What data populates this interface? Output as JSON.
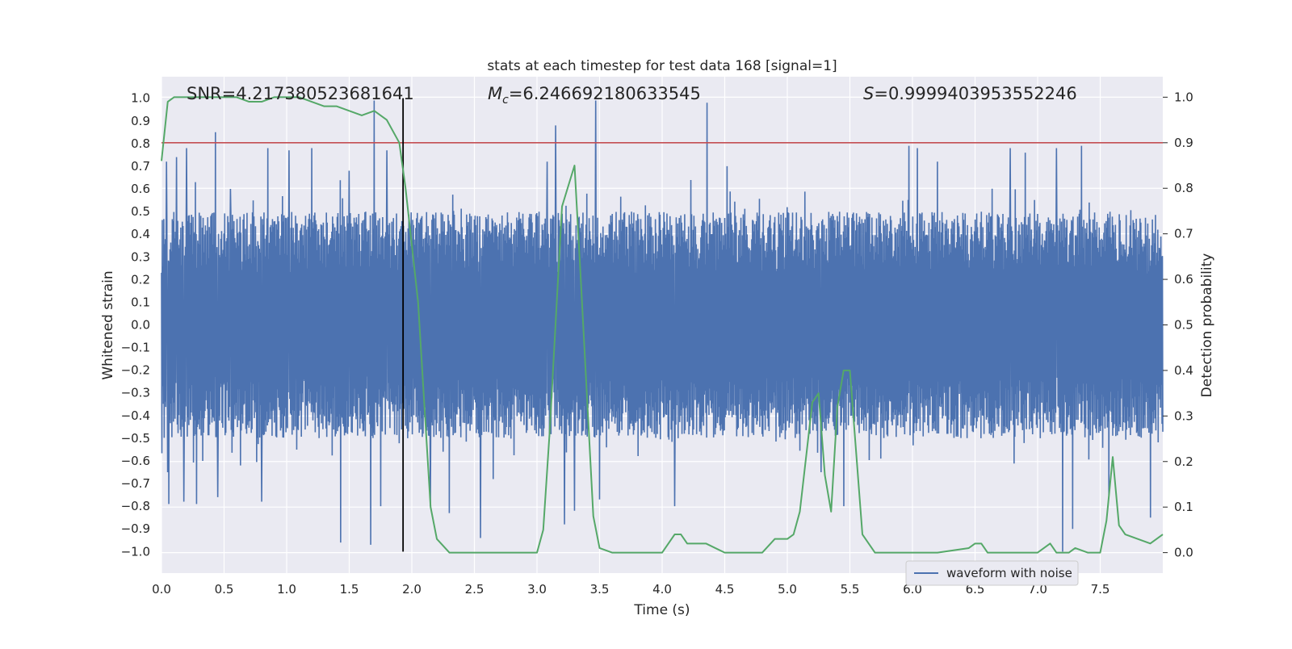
{
  "chart_data": {
    "type": "line",
    "title": "stats at each timestep for test data 168 [signal=1]",
    "xlabel": "Time (s)",
    "ylabel": "Whitened strain",
    "y2label": "Detection probability",
    "xlim": [
      0.0,
      8.0
    ],
    "ylim": [
      -1.095,
      1.095
    ],
    "y2lim": [
      -0.045,
      1.045
    ],
    "grid": true,
    "legend_position": "lower-right",
    "x_ticks": [
      "0.0",
      "0.5",
      "1.0",
      "1.5",
      "2.0",
      "2.5",
      "3.0",
      "3.5",
      "4.0",
      "4.5",
      "5.0",
      "5.5",
      "6.0",
      "6.5",
      "7.0",
      "7.5"
    ],
    "y_ticks": [
      "1.0",
      "0.9",
      "0.8",
      "0.7",
      "0.6",
      "0.5",
      "0.4",
      "0.3",
      "0.2",
      "0.1",
      "0.0",
      "−0.1",
      "−0.2",
      "−0.3",
      "−0.4",
      "−0.5",
      "−0.6",
      "−0.7",
      "−0.8",
      "−0.9",
      "−1.0"
    ],
    "y2_ticks": [
      "1.0",
      "0.9",
      "0.8",
      "0.7",
      "0.6",
      "0.5",
      "0.4",
      "0.3",
      "0.2",
      "0.1",
      "0.0"
    ],
    "annotations": {
      "snr_text": "SNR=4.217380523681641",
      "mc_symbol": "M",
      "mc_subscript": "c",
      "mc_value": "=6.246692180633545",
      "s_symbol": "S",
      "s_value": "=0.9999403953552246"
    },
    "threshold": {
      "value": 0.9,
      "axis": "right",
      "color": "#c44e52"
    },
    "marker_line": {
      "x": 1.93,
      "y_from": -1.0,
      "y_to": 1.0,
      "color": "#000000"
    },
    "waveform": {
      "name": "waveform with noise",
      "color": "#4c72b0",
      "typical_envelope": 0.5,
      "spikes": [
        {
          "t": 0.04,
          "v": 0.72
        },
        {
          "t": 0.05,
          "v": -0.65
        },
        {
          "t": 0.06,
          "v": -0.79
        },
        {
          "t": 0.12,
          "v": 0.74
        },
        {
          "t": 0.18,
          "v": -0.78
        },
        {
          "t": 0.2,
          "v": 0.78
        },
        {
          "t": 0.27,
          "v": 0.63
        },
        {
          "t": 0.28,
          "v": -0.79
        },
        {
          "t": 0.33,
          "v": -0.6
        },
        {
          "t": 0.43,
          "v": 0.85
        },
        {
          "t": 0.45,
          "v": -0.76
        },
        {
          "t": 0.55,
          "v": 0.6
        },
        {
          "t": 0.63,
          "v": -0.62
        },
        {
          "t": 0.8,
          "v": -0.78
        },
        {
          "t": 0.85,
          "v": 0.78
        },
        {
          "t": 1.02,
          "v": 0.77
        },
        {
          "t": 1.08,
          "v": -0.55
        },
        {
          "t": 1.2,
          "v": 0.78
        },
        {
          "t": 1.43,
          "v": -0.96
        },
        {
          "t": 1.5,
          "v": 0.68
        },
        {
          "t": 1.67,
          "v": -0.97
        },
        {
          "t": 1.7,
          "v": 0.99
        },
        {
          "t": 1.75,
          "v": -0.8
        },
        {
          "t": 1.8,
          "v": 0.77
        },
        {
          "t": 2.15,
          "v": -0.8
        },
        {
          "t": 2.3,
          "v": -0.83
        },
        {
          "t": 2.55,
          "v": -0.94
        },
        {
          "t": 2.65,
          "v": -0.68
        },
        {
          "t": 3.08,
          "v": 0.72
        },
        {
          "t": 3.15,
          "v": 0.88
        },
        {
          "t": 3.22,
          "v": -0.88
        },
        {
          "t": 3.3,
          "v": -0.82
        },
        {
          "t": 3.47,
          "v": 0.99
        },
        {
          "t": 3.5,
          "v": -0.77
        },
        {
          "t": 4.1,
          "v": -0.8
        },
        {
          "t": 4.36,
          "v": 0.98
        },
        {
          "t": 4.52,
          "v": 0.7
        },
        {
          "t": 5.27,
          "v": -0.65
        },
        {
          "t": 5.45,
          "v": -0.8
        },
        {
          "t": 5.97,
          "v": 0.79
        },
        {
          "t": 6.04,
          "v": 0.78
        },
        {
          "t": 6.2,
          "v": 0.72
        },
        {
          "t": 6.78,
          "v": 0.78
        },
        {
          "t": 6.9,
          "v": 0.76
        },
        {
          "t": 7.15,
          "v": 0.78
        },
        {
          "t": 7.2,
          "v": -1.0
        },
        {
          "t": 7.28,
          "v": -0.9
        },
        {
          "t": 7.35,
          "v": 0.79
        },
        {
          "t": 7.57,
          "v": -0.75
        },
        {
          "t": 7.9,
          "v": -0.85
        }
      ]
    },
    "probability": {
      "name": "Detection probability",
      "color": "#55a868",
      "x": [
        0.0,
        0.05,
        0.1,
        0.2,
        0.3,
        0.4,
        0.5,
        0.6,
        0.7,
        0.8,
        0.9,
        1.0,
        1.1,
        1.2,
        1.3,
        1.4,
        1.5,
        1.6,
        1.7,
        1.8,
        1.9,
        1.95,
        2.05,
        2.15,
        2.2,
        2.3,
        2.4,
        2.6,
        2.8,
        2.9,
        3.0,
        3.05,
        3.1,
        3.2,
        3.3,
        3.35,
        3.45,
        3.5,
        3.6,
        3.8,
        3.95,
        4.0,
        4.1,
        4.15,
        4.2,
        4.3,
        4.35,
        4.5,
        4.75,
        4.8,
        4.9,
        4.95,
        5.0,
        5.05,
        5.1,
        5.2,
        5.25,
        5.3,
        5.35,
        5.4,
        5.45,
        5.5,
        5.6,
        5.7,
        5.8,
        6.2,
        6.45,
        6.5,
        6.55,
        6.6,
        6.8,
        7.0,
        7.05,
        7.1,
        7.15,
        7.2,
        7.25,
        7.3,
        7.4,
        7.5,
        7.55,
        7.6,
        7.65,
        7.7,
        7.8,
        7.9,
        8.0
      ],
      "y": [
        0.86,
        0.99,
        1.0,
        1.0,
        1.0,
        1.0,
        1.0,
        1.0,
        0.99,
        0.99,
        1.0,
        1.0,
        1.0,
        0.99,
        0.98,
        0.98,
        0.97,
        0.96,
        0.97,
        0.95,
        0.9,
        0.8,
        0.55,
        0.1,
        0.03,
        0.0,
        0.0,
        0.0,
        0.0,
        0.0,
        0.0,
        0.05,
        0.26,
        0.76,
        0.85,
        0.6,
        0.08,
        0.01,
        0.0,
        0.0,
        0.0,
        0.0,
        0.04,
        0.04,
        0.02,
        0.02,
        0.02,
        0.0,
        0.0,
        0.0,
        0.03,
        0.03,
        0.03,
        0.04,
        0.09,
        0.33,
        0.35,
        0.17,
        0.09,
        0.32,
        0.4,
        0.4,
        0.04,
        0.0,
        0.0,
        0.0,
        0.01,
        0.02,
        0.02,
        0.0,
        0.0,
        0.0,
        0.01,
        0.02,
        0.0,
        0.0,
        0.0,
        0.01,
        0.0,
        0.0,
        0.07,
        0.21,
        0.06,
        0.04,
        0.03,
        0.02,
        0.04
      ]
    },
    "legend": [
      {
        "label": "waveform with noise",
        "color": "#4c72b0"
      }
    ]
  }
}
